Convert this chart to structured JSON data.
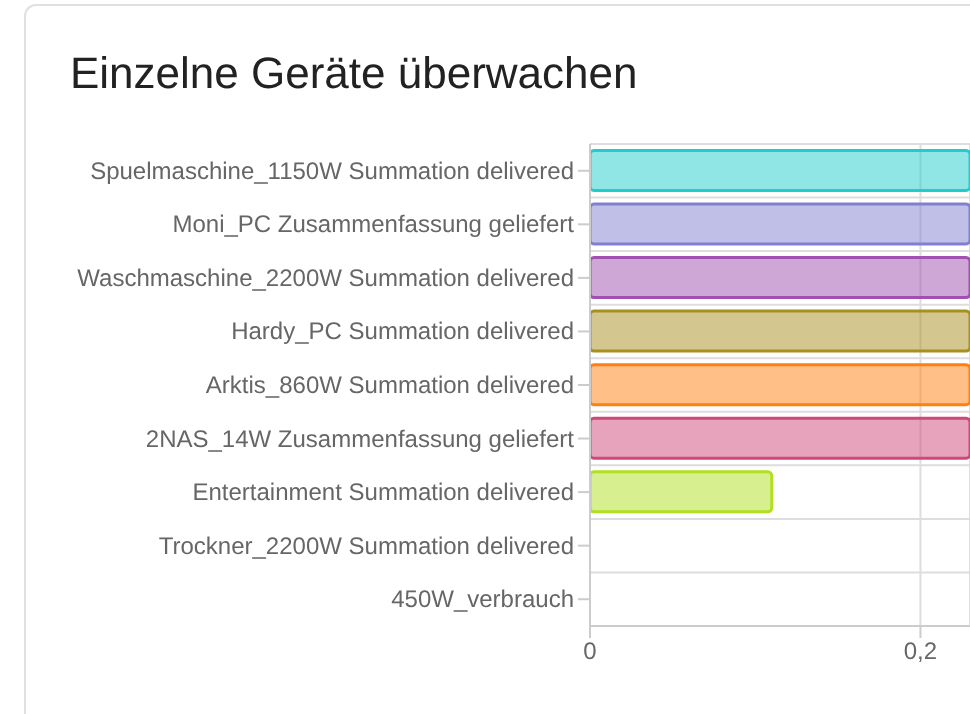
{
  "chart_data": {
    "type": "bar",
    "orientation": "horizontal",
    "title": "Einzelne Geräte überwachen",
    "categories": [
      "Spuelmaschine_1150W Summation delivered",
      "Moni_PC Zusammenfassung geliefert",
      "Waschmaschine_2200W Summation delivered",
      "Hardy_PC Summation delivered",
      "Arktis_860W Summation delivered",
      "2NAS_14W Zusammenfassung geliefert",
      "Entertainment Summation delivered",
      "Trockner_2200W Summation delivered",
      "450W_verbrauch"
    ],
    "values": [
      0.23,
      0.23,
      0.23,
      0.23,
      0.23,
      0.23,
      0.11,
      0,
      0
    ],
    "colors": [
      "#22cccc",
      "#8080d0",
      "#a050b0",
      "#a89020",
      "#ff8010",
      "#d04878",
      "#b0e020",
      "#999999",
      "#999999"
    ],
    "xlim": [
      0,
      0.23
    ],
    "xticks": [
      0,
      {
        "value": 0.2,
        "label": "0,2"
      }
    ],
    "grid": true
  }
}
